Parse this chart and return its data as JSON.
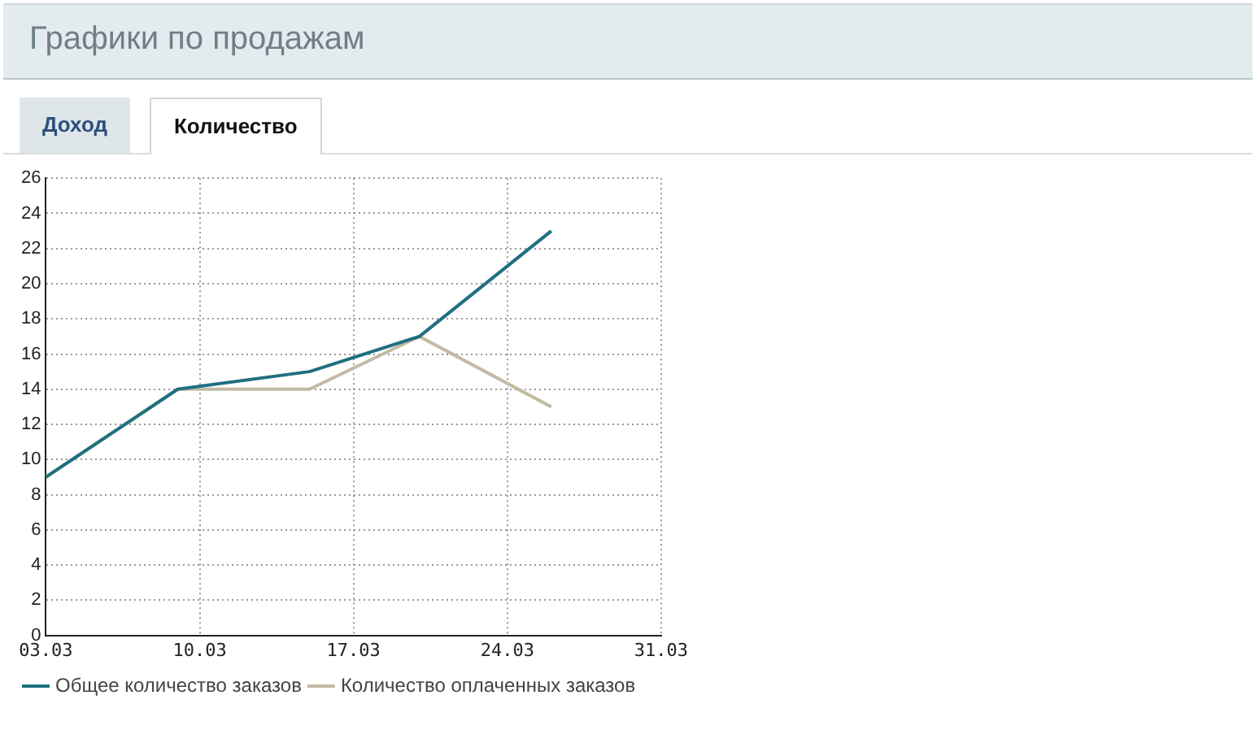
{
  "chart_data": {
    "type": "line",
    "title": "Графики по продажам",
    "annotations": [
      "Доход",
      "Количество"
    ],
    "x": [
      "--03-03",
      "--03-09",
      "--03-15",
      "--03-20",
      "--03-26"
    ],
    "series": [
      {
        "name": "Общее количество заказов",
        "color": "#1f6f80",
        "values": [
          9,
          14,
          15,
          17,
          23
        ]
      },
      {
        "name": "Количество оплаченных заказов",
        "color": "#c2baa4",
        "values": [
          9,
          14,
          14,
          17,
          13
        ]
      }
    ],
    "xlim": [
      "--03-03",
      "--03-31"
    ],
    "xticks": [
      {
        "value": "--03-03",
        "label": "03.03"
      },
      {
        "value": "--03-10",
        "label": "10.03"
      },
      {
        "value": "--03-17",
        "label": "17.03"
      },
      {
        "value": "--03-24",
        "label": "24.03"
      },
      {
        "value": "--03-31",
        "label": "31.03"
      }
    ],
    "ylim": [
      0,
      26
    ],
    "yticks": [
      0,
      2,
      4,
      6,
      8,
      10,
      12,
      14,
      16,
      18,
      20,
      22,
      24,
      26
    ],
    "grid": true,
    "legend": "bottom left",
    "marker": "none",
    "line_style": "solid"
  }
}
